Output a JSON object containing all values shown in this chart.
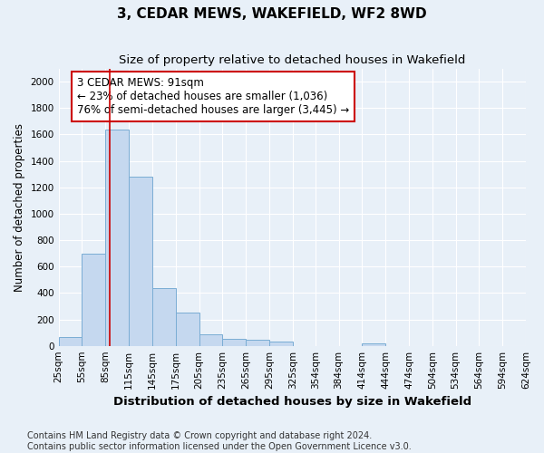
{
  "title": "3, CEDAR MEWS, WAKEFIELD, WF2 8WD",
  "subtitle": "Size of property relative to detached houses in Wakefield",
  "xlabel": "Distribution of detached houses by size in Wakefield",
  "ylabel": "Number of detached properties",
  "bin_edges": [
    25,
    55,
    85,
    115,
    145,
    175,
    205,
    235,
    265,
    295,
    325,
    354,
    384,
    414,
    444,
    474,
    504,
    534,
    564,
    594,
    624
  ],
  "values": [
    65,
    700,
    1640,
    1280,
    435,
    255,
    90,
    55,
    45,
    30,
    0,
    0,
    0,
    20,
    0,
    0,
    0,
    0,
    0,
    0
  ],
  "bar_color": "#c5d8ef",
  "bar_edge_color": "#7aadd4",
  "property_size": 91,
  "vline_color": "#cc0000",
  "annotation_text": "3 CEDAR MEWS: 91sqm\n← 23% of detached houses are smaller (1,036)\n76% of semi-detached houses are larger (3,445) →",
  "annotation_box_facecolor": "#ffffff",
  "annotation_border_color": "#cc0000",
  "ylim": [
    0,
    2100
  ],
  "yticks": [
    0,
    200,
    400,
    600,
    800,
    1000,
    1200,
    1400,
    1600,
    1800,
    2000
  ],
  "bg_color": "#e8f0f8",
  "footer": "Contains HM Land Registry data © Crown copyright and database right 2024.\nContains public sector information licensed under the Open Government Licence v3.0.",
  "title_fontsize": 11,
  "subtitle_fontsize": 9.5,
  "xlabel_fontsize": 9.5,
  "ylabel_fontsize": 8.5,
  "tick_fontsize": 7.5,
  "annotation_fontsize": 8.5,
  "footer_fontsize": 7
}
